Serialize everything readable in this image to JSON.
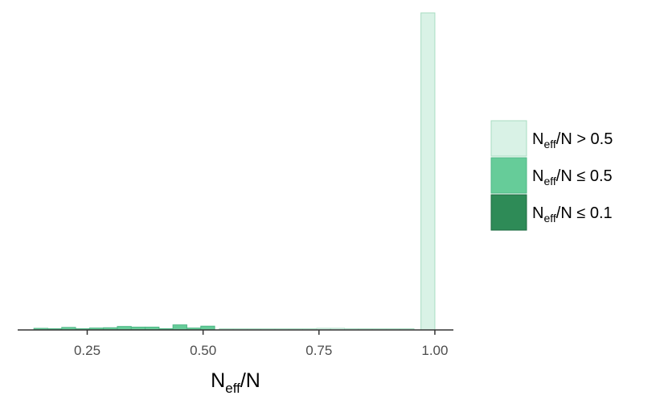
{
  "chart_data": {
    "type": "bar",
    "xlabel": {
      "main": "N",
      "sub": "eff",
      "suffix": "/N"
    },
    "ylabel": "",
    "xlim": [
      0.1,
      1.04
    ],
    "ylim": [
      0,
      1.0
    ],
    "x_ticks": [
      0.25,
      0.5,
      0.75,
      1.0
    ],
    "x_tick_labels": [
      "0.25",
      "0.50",
      "0.75",
      "1.00"
    ],
    "grid": false,
    "legend_position": "right",
    "bin_width": 0.03,
    "series": [
      {
        "key": "high",
        "legend": {
          "main": "N",
          "sub": "eff",
          "suffix": "/N > 0.5"
        },
        "fill": "#d9f2e6",
        "stroke": "#a8dcc2",
        "bins": [
          {
            "x": 0.55,
            "value": 0.003
          },
          {
            "x": 0.58,
            "value": 0.002
          },
          {
            "x": 0.61,
            "value": 0.002
          },
          {
            "x": 0.64,
            "value": 0.002
          },
          {
            "x": 0.67,
            "value": 0.002
          },
          {
            "x": 0.7,
            "value": 0.002
          },
          {
            "x": 0.73,
            "value": 0.003
          },
          {
            "x": 0.76,
            "value": 0.005
          },
          {
            "x": 0.79,
            "value": 0.005
          },
          {
            "x": 0.82,
            "value": 0.004
          },
          {
            "x": 0.85,
            "value": 0.003
          },
          {
            "x": 0.88,
            "value": 0.003
          },
          {
            "x": 0.91,
            "value": 0.003
          },
          {
            "x": 0.94,
            "value": 0.003
          },
          {
            "x": 0.985,
            "value": 1.0
          }
        ]
      },
      {
        "key": "mid",
        "legend": {
          "main": "N",
          "sub": "eff",
          "suffix": "/N ≤ 0.5"
        },
        "fill": "#66cc99",
        "stroke": "#4fb886",
        "bins": [
          {
            "x": 0.15,
            "value": 0.005
          },
          {
            "x": 0.18,
            "value": 0.003
          },
          {
            "x": 0.21,
            "value": 0.008
          },
          {
            "x": 0.24,
            "value": 0.003
          },
          {
            "x": 0.27,
            "value": 0.006
          },
          {
            "x": 0.3,
            "value": 0.007
          },
          {
            "x": 0.33,
            "value": 0.011
          },
          {
            "x": 0.36,
            "value": 0.009
          },
          {
            "x": 0.39,
            "value": 0.009
          },
          {
            "x": 0.42,
            "value": 0.004
          },
          {
            "x": 0.45,
            "value": 0.016
          },
          {
            "x": 0.48,
            "value": 0.006
          },
          {
            "x": 0.51,
            "value": 0.012
          }
        ]
      },
      {
        "key": "low",
        "legend": {
          "main": "N",
          "sub": "eff",
          "suffix": "/N ≤ 0.1"
        },
        "fill": "#2e8b57",
        "stroke": "#1e6b42",
        "bins": []
      }
    ]
  }
}
